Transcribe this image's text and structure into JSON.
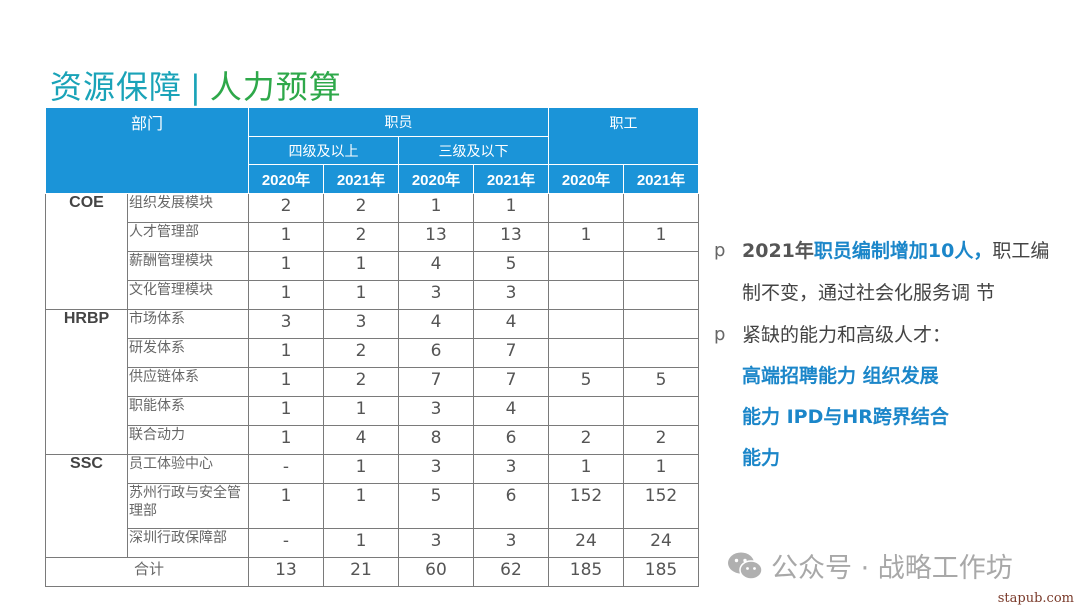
{
  "title": {
    "left": "资源保障",
    "sep": "|",
    "right": "人力预算"
  },
  "table": {
    "header": {
      "dept": "部门",
      "staff": "职员",
      "workers": "职工",
      "level_high": "四级及以上",
      "level_low": "三级及以下",
      "years": [
        "2020年",
        "2021年",
        "2020年",
        "2021年",
        "2020年",
        "2021年"
      ]
    },
    "groups": [
      {
        "name": "COE",
        "rows": [
          {
            "dept": "组织发展模块",
            "values": [
              "2",
              "2",
              "1",
              "1",
              "",
              ""
            ]
          },
          {
            "dept": "人才管理部",
            "values": [
              "1",
              "2",
              "13",
              "13",
              "1",
              "1"
            ]
          },
          {
            "dept": "薪酬管理模块",
            "values": [
              "1",
              "1",
              "4",
              "5",
              "",
              ""
            ]
          },
          {
            "dept": "文化管理模块",
            "values": [
              "1",
              "1",
              "3",
              "3",
              "",
              ""
            ]
          }
        ]
      },
      {
        "name": "HRBP",
        "rows": [
          {
            "dept": "市场体系",
            "values": [
              "3",
              "3",
              "4",
              "4",
              "",
              ""
            ]
          },
          {
            "dept": "研发体系",
            "values": [
              "1",
              "2",
              "6",
              "7",
              "",
              ""
            ]
          },
          {
            "dept": "供应链体系",
            "values": [
              "1",
              "2",
              "7",
              "7",
              "5",
              "5"
            ]
          },
          {
            "dept": "职能体系",
            "values": [
              "1",
              "1",
              "3",
              "4",
              "",
              ""
            ]
          },
          {
            "dept": "联合动力",
            "values": [
              "1",
              "4",
              "8",
              "6",
              "2",
              "2"
            ]
          }
        ]
      },
      {
        "name": "SSC",
        "rows": [
          {
            "dept": "员工体验中心",
            "values": [
              "-",
              "1",
              "3",
              "3",
              "1",
              "1"
            ]
          },
          {
            "dept": "苏州行政与安全管理部",
            "values": [
              "1",
              "1",
              "5",
              "6",
              "152",
              "152"
            ]
          },
          {
            "dept": "深圳行政保障部",
            "values": [
              "-",
              "1",
              "3",
              "3",
              "24",
              "24"
            ]
          }
        ]
      }
    ],
    "total": {
      "label": "合计",
      "values": [
        "13",
        "21",
        "60",
        "62",
        "185",
        "185"
      ]
    }
  },
  "bullets": {
    "marker": "p",
    "b1_pre": "2021年",
    "b1_hl": "职员编制增加10人，",
    "b1_rest": "职工编制不变，通过社会化服务调 节",
    "b2_text": "紧缺的能力和高级人才：",
    "b2_lines": [
      "高端招聘能力 组织发展",
      "能力 IPD与HR跨界结合",
      "能力"
    ]
  },
  "watermark": {
    "text": "公众号 · 战略工作坊",
    "url": "stapub.com"
  },
  "colors": {
    "header_bg": "#1b94d8",
    "title_teal": "#1aa3b8",
    "title_green": "#2ea84a",
    "accent_blue": "#1b86c9"
  }
}
